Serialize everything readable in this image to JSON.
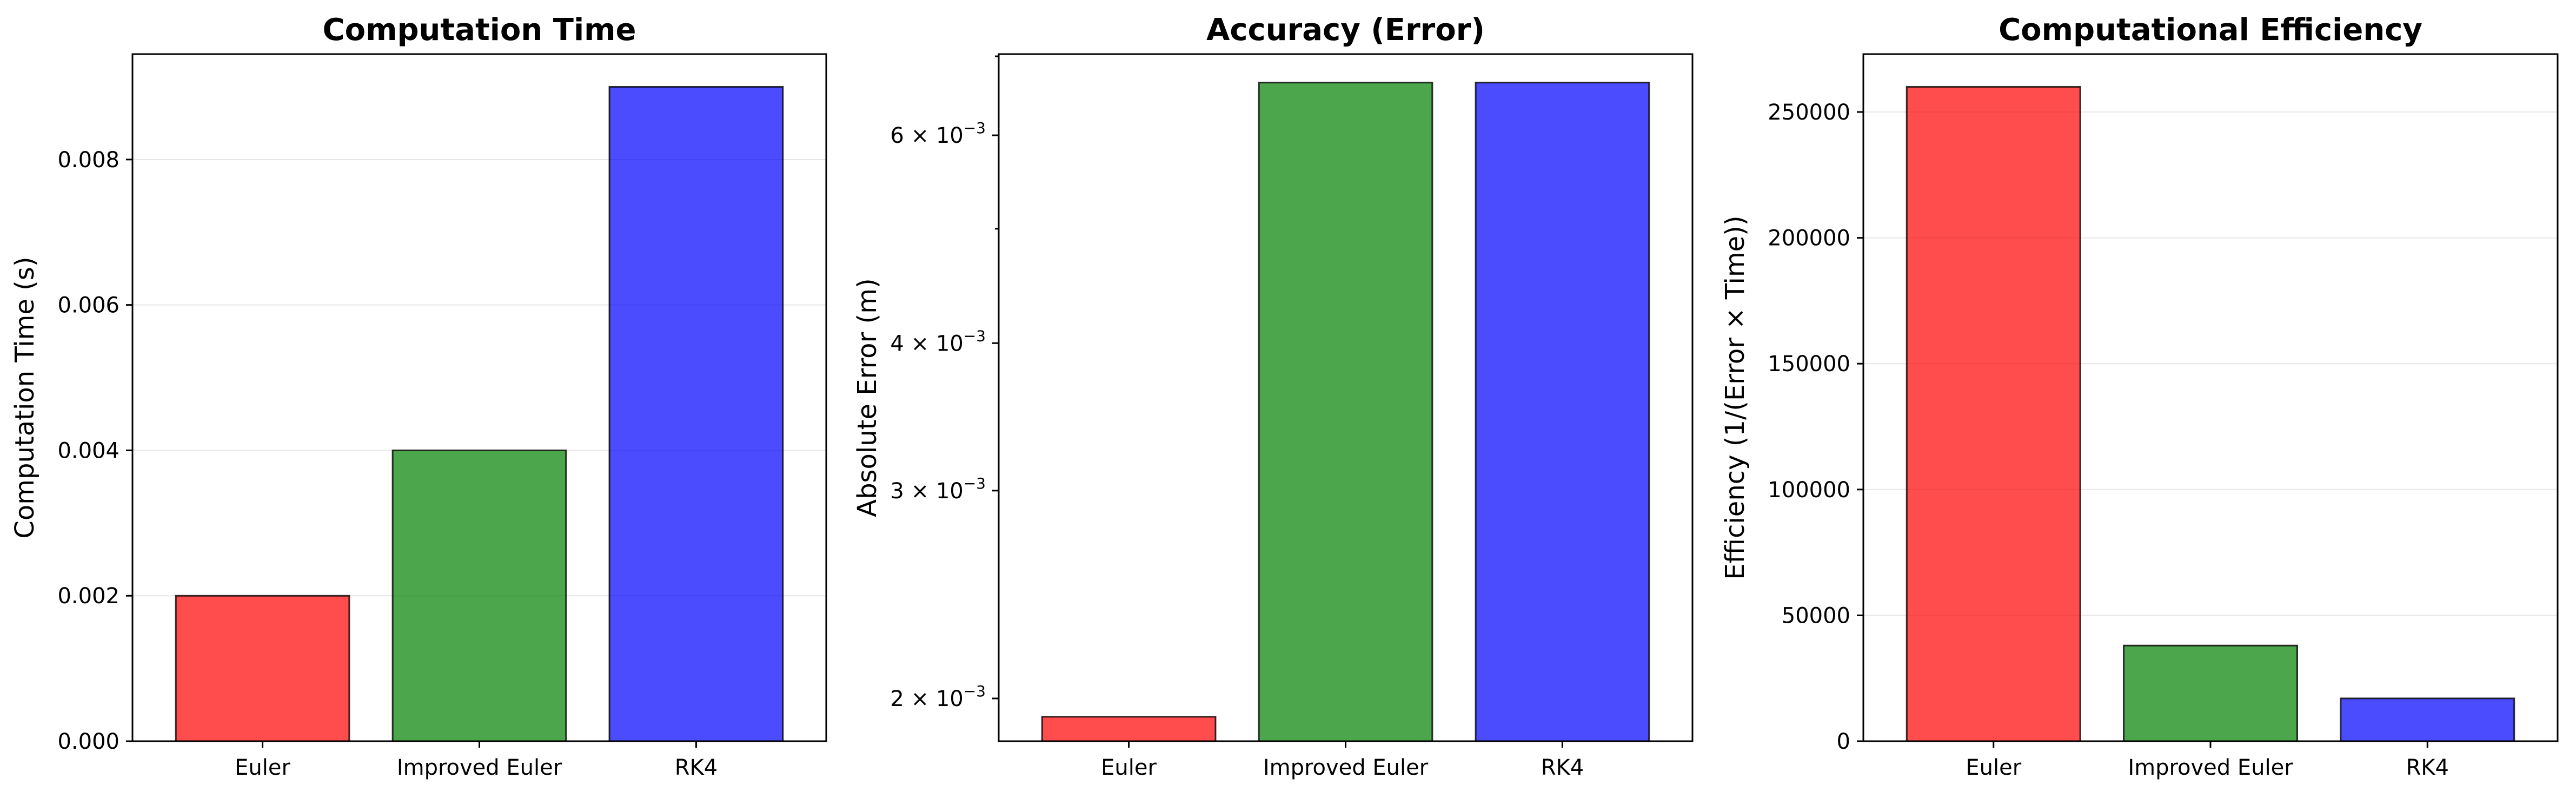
{
  "colors": [
    "#ff0000",
    "#008000",
    "#0000ff"
  ],
  "chart_data": [
    {
      "type": "bar",
      "title": "Computation Time",
      "ylabel": "Computation Time (s)",
      "xlabel": "",
      "categories": [
        "Euler",
        "Improved Euler",
        "RK4"
      ],
      "values": [
        0.002,
        0.004,
        0.009
      ],
      "ylim": [
        0,
        0.00945
      ],
      "yscale": "linear",
      "yticks": [
        0,
        0.002,
        0.004,
        0.006,
        0.008
      ],
      "ytick_labels": [
        "0.000",
        "0.002",
        "0.004",
        "0.006",
        "0.008"
      ],
      "grid": "y"
    },
    {
      "type": "bar",
      "title": "Accuracy (Error)",
      "ylabel": "Absolute Error (m)",
      "xlabel": "",
      "categories": [
        "Euler",
        "Improved Euler",
        "RK4"
      ],
      "values": [
        0.00193,
        0.00665,
        0.00665
      ],
      "ylim": [
        0.00184,
        0.00703
      ],
      "yscale": "log",
      "yticks": [
        0.002,
        0.003,
        0.004,
        0.006
      ],
      "ytick_labels": [
        "2 × 10^-3",
        "3 × 10^-3",
        "4 × 10^-3",
        "6 × 10^-3"
      ],
      "grid": "none"
    },
    {
      "type": "bar",
      "title": "Computational Efficiency",
      "ylabel": "Efficiency (1/(Error × Time))",
      "xlabel": "",
      "categories": [
        "Euler",
        "Improved Euler",
        "RK4"
      ],
      "values": [
        260000,
        38000,
        17000
      ],
      "ylim": [
        0,
        273000
      ],
      "yscale": "linear",
      "yticks": [
        0,
        50000,
        100000,
        150000,
        200000,
        250000
      ],
      "ytick_labels": [
        "0",
        "50000",
        "100000",
        "150000",
        "200000",
        "250000"
      ],
      "grid": "y"
    }
  ]
}
